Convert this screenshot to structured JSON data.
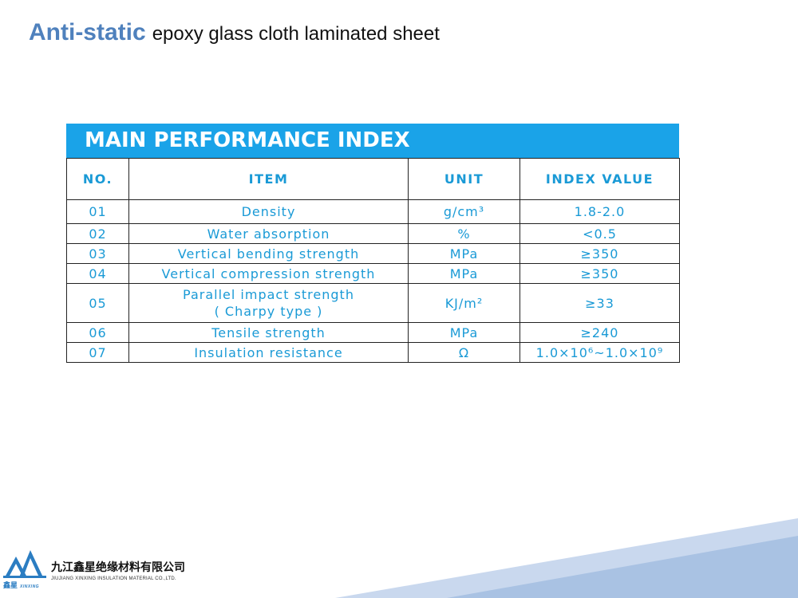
{
  "title": {
    "bold": "Anti-static",
    "rest": "epoxy glass cloth laminated sheet"
  },
  "panel": {
    "header": "MAIN PERFORMANCE INDEX",
    "columns": [
      "NO.",
      "ITEM",
      "UNIT",
      "INDEX VALUE"
    ],
    "rows": [
      {
        "no": "01",
        "item": "Density",
        "unit": "g/cm³",
        "value": "1.8-2.0"
      },
      {
        "no": "02",
        "item": "Water absorption",
        "unit": "%",
        "value": "<0.5"
      },
      {
        "no": "03",
        "item": "Vertical bending strength",
        "unit": "MPa",
        "value": "≥350"
      },
      {
        "no": "04",
        "item": "Vertical compression strength",
        "unit": "MPa",
        "value": "≥350"
      },
      {
        "no": "05",
        "item": "Parallel impact strength",
        "item2": "( Charpy type )",
        "unit": "KJ/m²",
        "value": "≥33"
      },
      {
        "no": "06",
        "item": "Tensile strength",
        "unit": "MPa",
        "value": "≥240"
      },
      {
        "no": "07",
        "item": "Insulation resistance",
        "unit": "Ω",
        "value": "1.0×10⁶~1.0×10⁹"
      }
    ]
  },
  "logo": {
    "cn_name": "九江鑫星绝缘材料有限公司",
    "en_name": "JIUJIANG XINXING INSULATION MATERIAL CO.,LTD.",
    "mark_cn": "鑫星",
    "mark_en": "XINXING",
    "icon": "company-logo-mark"
  },
  "colors": {
    "title_accent": "#4f81bd",
    "header_bg": "#1aa3e8",
    "table_text": "#1a9ad6",
    "stripe": "#a9c2e3"
  }
}
